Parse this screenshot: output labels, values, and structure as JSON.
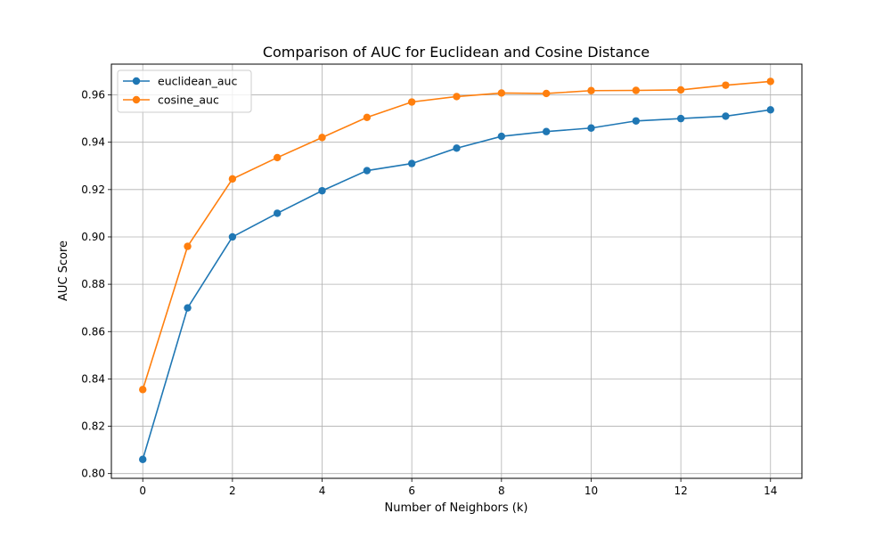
{
  "chart_data": {
    "type": "line",
    "title": "Comparison of AUC for Euclidean and Cosine Distance",
    "xlabel": "Number of Neighbors (k)",
    "ylabel": "AUC Score",
    "xlim": [
      -0.7,
      14.7
    ],
    "ylim": [
      0.798,
      0.973
    ],
    "x_ticks": [
      0,
      2,
      4,
      6,
      8,
      10,
      12,
      14
    ],
    "y_ticks": [
      0.8,
      0.82,
      0.84,
      0.86,
      0.88,
      0.9,
      0.92,
      0.94,
      0.96
    ],
    "x_tick_labels": [
      "0",
      "2",
      "4",
      "6",
      "8",
      "10",
      "12",
      "14"
    ],
    "y_tick_labels": [
      "0.80",
      "0.82",
      "0.84",
      "0.86",
      "0.88",
      "0.90",
      "0.92",
      "0.94",
      "0.96"
    ],
    "grid": true,
    "legend_position": "top-left",
    "x": [
      0,
      1,
      2,
      3,
      4,
      5,
      6,
      7,
      8,
      9,
      10,
      11,
      12,
      13,
      14
    ],
    "series": [
      {
        "name": "euclidean_auc",
        "color": "#1f77b4",
        "values": [
          0.806,
          0.87,
          0.9,
          0.91,
          0.9195,
          0.928,
          0.931,
          0.9375,
          0.9425,
          0.9445,
          0.946,
          0.949,
          0.95,
          0.951,
          0.9537
        ]
      },
      {
        "name": "cosine_auc",
        "color": "#ff7f0e",
        "values": [
          0.8355,
          0.896,
          0.9245,
          0.9335,
          0.942,
          0.9505,
          0.957,
          0.9593,
          0.9608,
          0.9606,
          0.9618,
          0.9619,
          0.9621,
          0.9641,
          0.9657
        ]
      }
    ]
  }
}
